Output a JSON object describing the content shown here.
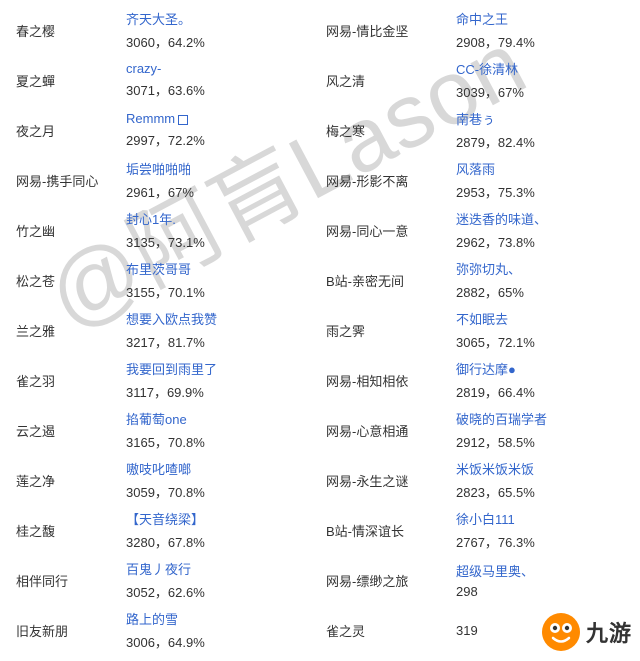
{
  "watermark": "@阿肓Lason",
  "rows": [
    {
      "l1": "春之樱",
      "l2_link": "齐天大圣。",
      "l2_stat": "3060，64.2%",
      "r1": "网易-情比金坚",
      "r2_link": "命中之王",
      "r2_stat": "2908，79.4%"
    },
    {
      "l1": "夏之蟬",
      "l2_link": "crazy-",
      "l2_stat": "3071，63.6%",
      "r1": "风之清",
      "r2_link": "CC-徐清林",
      "r2_stat": "3039，67%"
    },
    {
      "l1": "夜之月",
      "l2_link": "Remmm",
      "l2_badge": true,
      "l2_stat": "2997，72.2%",
      "r1": "梅之寒",
      "r2_link": "南巷ぅ",
      "r2_stat": "2879，82.4%"
    },
    {
      "l1": "网易-携手同心",
      "l2_link": "垢尝啪啪啪",
      "l2_stat": "2961，67%",
      "r1": "网易-形影不离",
      "r2_link": "风落雨",
      "r2_stat": "2953，75.3%"
    },
    {
      "l1": "竹之幽",
      "l2_link": "封心1年.",
      "l2_stat": "3135，73.1%",
      "r1": "网易-同心一意",
      "r2_link": "迷迭香的味道、",
      "r2_stat": "2962，73.8%"
    },
    {
      "l1": "松之苍",
      "l2_link": "布里茨哥哥",
      "l2_stat": "3155，70.1%",
      "r1": "B站-亲密无间",
      "r2_link": "弥弥切丸、",
      "r2_stat": "2882，65%"
    },
    {
      "l1": "兰之雅",
      "l2_link": "想要入欧点我赞",
      "l2_stat": "3217，81.7%",
      "r1": "雨之霁",
      "r2_link": "不如眠去",
      "r2_stat": "3065，72.1%"
    },
    {
      "l1": "雀之羽",
      "l2_link": "我要回到雨里了",
      "l2_stat": "3117，69.9%",
      "r1": "网易-相知相依",
      "r2_link": "御行达摩●",
      "r2_stat": "2819，66.4%"
    },
    {
      "l1": "云之遏",
      "l2_link": "掐葡萄one",
      "l2_stat": "3165，70.8%",
      "r1": "网易-心意相通",
      "r2_link": "破晓的百瑞学者",
      "r2_stat": "2912，58.5%"
    },
    {
      "l1": "莲之净",
      "l2_link": "嗷吱叱喳啷",
      "l2_stat": "3059，70.8%",
      "r1": "网易-永生之谜",
      "r2_link": "米饭米饭米饭",
      "r2_stat": "2823，65.5%"
    },
    {
      "l1": "桂之馥",
      "l2_link": "【天音绕梁】",
      "l2_stat": "3280，67.8%",
      "r1": "B站-情深谊长",
      "r2_link": "徐小白111",
      "r2_stat": "2767，76.3%"
    },
    {
      "l1": "相伴同行",
      "l2_link": "百鬼丿夜行",
      "l2_stat": "3052，62.6%",
      "r1": "网易-缥缈之旅",
      "r2_link": "超级马里奥、",
      "r2_stat": "298"
    },
    {
      "l1": "旧友新朋",
      "l2_link": "路上的雪",
      "l2_stat": "3006，64.9%",
      "r1": "雀之灵",
      "r2_link": "",
      "r2_stat": "319"
    }
  ],
  "logo_text": "九游",
  "colors": {
    "link": "#3366cc",
    "text": "#333333",
    "watermark": "#d8d8d8",
    "logo_orange": "#ff8a00"
  }
}
